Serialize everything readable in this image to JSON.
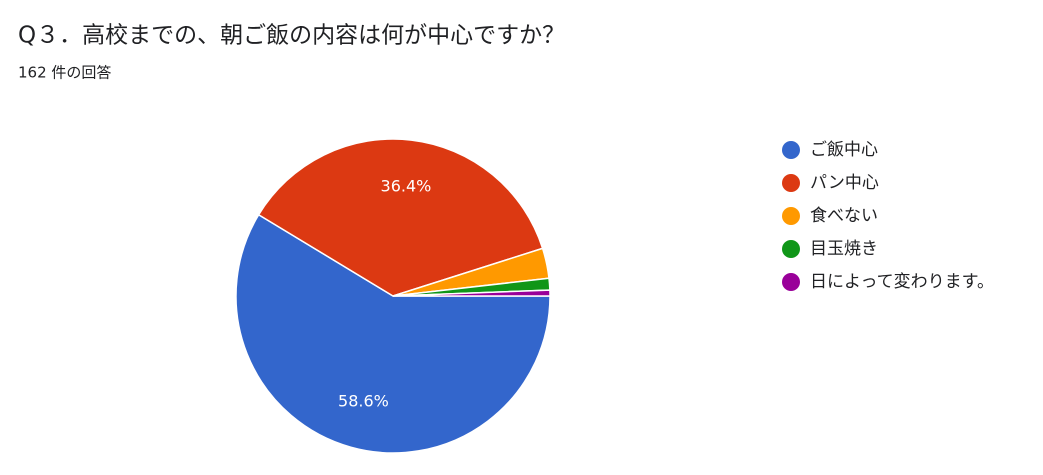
{
  "chart_data": {
    "type": "pie",
    "title": "Q３．高校までの、朝ご飯の内容は何が中心ですか？",
    "subtitle": "162 件の回答",
    "categories": [
      "ご飯中心",
      "パン中心",
      "食べない",
      "目玉焼き",
      "日によって変わります。"
    ],
    "values": [
      58.6,
      36.4,
      3.1,
      1.2,
      0.6
    ],
    "value_labels": [
      "58.6%",
      "36.4%",
      null,
      null,
      null
    ],
    "colors": [
      "#3366cc",
      "#dc3912",
      "#ff9900",
      "#109618",
      "#990099"
    ],
    "legend": "right"
  }
}
